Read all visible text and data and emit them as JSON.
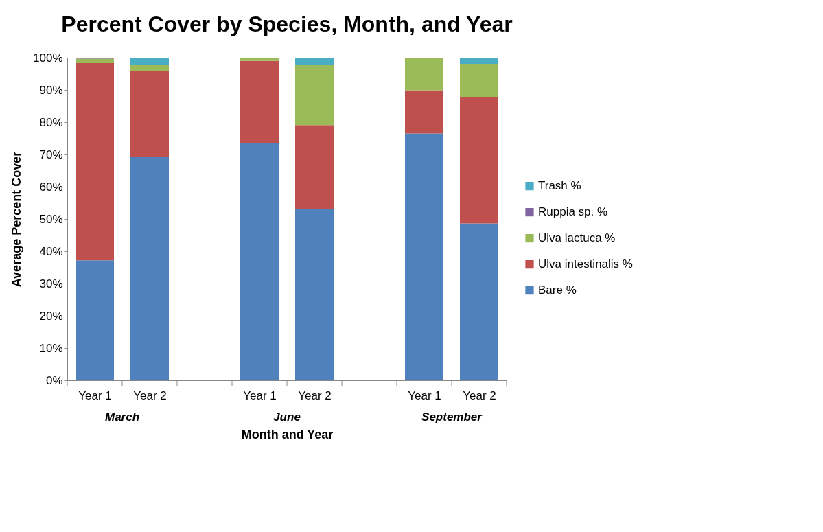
{
  "chart_data": {
    "type": "bar",
    "stacked": true,
    "title": "Percent Cover by Species, Month, and Year",
    "xlabel": "Month and Year",
    "ylabel": "Average Percent Cover",
    "categories": [
      "Year 1",
      "Year 2",
      null,
      "Year 1",
      "Year 2",
      null,
      "Year 1",
      "Year 2"
    ],
    "annotations": [
      "March",
      "June",
      "September"
    ],
    "series": [
      {
        "name": "Bare %",
        "color": "#4f81bd",
        "values": [
          37.2,
          69.2,
          null,
          73.6,
          53.0,
          null,
          76.5,
          48.6
        ]
      },
      {
        "name": "Ulva intestinalis %",
        "color": "#c0504d",
        "values": [
          61.1,
          26.6,
          null,
          25.4,
          26.1,
          null,
          13.4,
          39.2
        ]
      },
      {
        "name": "Ulva lactuca %",
        "color": "#9bbb59",
        "values": [
          1.4,
          1.9,
          null,
          1.0,
          18.6,
          null,
          10.1,
          10.3
        ]
      },
      {
        "name": "Ruppia sp. %",
        "color": "#8064a2",
        "values": [
          0.3,
          0,
          null,
          0,
          0,
          null,
          0,
          0
        ]
      },
      {
        "name": "Trash %",
        "color": "#4bacc6",
        "values": [
          0,
          2.3,
          null,
          0,
          2.3,
          null,
          0,
          1.9
        ]
      }
    ],
    "ylim": [
      0,
      100
    ],
    "yticks": [
      {
        "value": 0,
        "label": "0%"
      },
      {
        "value": 10,
        "label": "10%"
      },
      {
        "value": 20,
        "label": "20%"
      },
      {
        "value": 30,
        "label": "30%"
      },
      {
        "value": 40,
        "label": "40%"
      },
      {
        "value": 50,
        "label": "50%"
      },
      {
        "value": 60,
        "label": "60%"
      },
      {
        "value": 70,
        "label": "70%"
      },
      {
        "value": 80,
        "label": "80%"
      },
      {
        "value": 90,
        "label": "90%"
      },
      {
        "value": 100,
        "label": "100%"
      }
    ],
    "grid": false,
    "legend": "right"
  }
}
